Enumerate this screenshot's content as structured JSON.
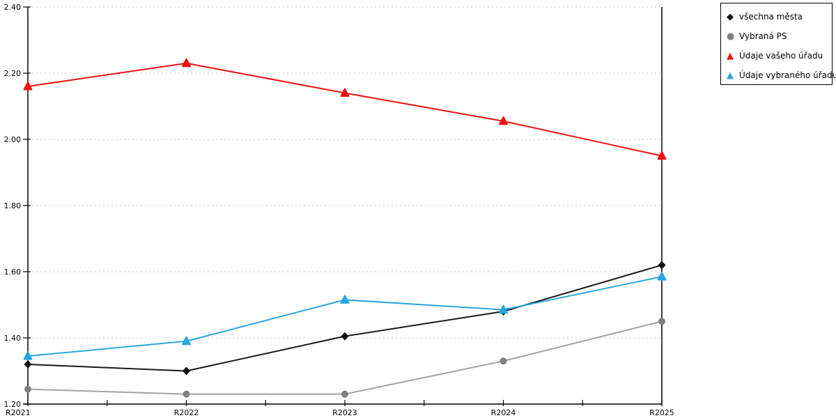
{
  "chart_data": {
    "type": "line",
    "title": "",
    "xlabel": "",
    "ylabel": "",
    "x": [
      "R2021",
      "R2022",
      "R2023",
      "R2024",
      "R2025"
    ],
    "ylim": [
      1.2,
      2.4
    ],
    "ytick_step": 0.2,
    "yticks": [
      "1.20",
      "1.40",
      "1.60",
      "1.80",
      "2.00",
      "2.20",
      "2.40"
    ],
    "grid": "horizontal-dashed",
    "grid_color": "#c9c9c9",
    "axis_color": "#000000",
    "legend_position": "top-right",
    "minor_x_ticks_between_categories": true,
    "series": [
      {
        "name": "všechna města",
        "marker": "diamond",
        "color": "#111111",
        "line_color": "#1a1a1a",
        "values": [
          1.32,
          1.3,
          1.405,
          1.48,
          1.62
        ]
      },
      {
        "name": "Vybraná PS",
        "marker": "circle",
        "color": "#7f7f7f",
        "line_color": "#a3a3a3",
        "values": [
          1.245,
          1.23,
          1.23,
          1.33,
          1.45
        ]
      },
      {
        "name": "Údaje vašeho úřadu",
        "marker": "triangle",
        "color": "#ee1111",
        "line_color": "#ee1111",
        "values": [
          2.16,
          2.23,
          2.14,
          2.055,
          1.95
        ]
      },
      {
        "name": "Údaje vybraného úřadu",
        "marker": "triangle",
        "color": "#29a8e0",
        "line_color": "#29a8e0",
        "values": [
          1.345,
          1.39,
          1.515,
          1.485,
          1.585
        ]
      }
    ]
  }
}
